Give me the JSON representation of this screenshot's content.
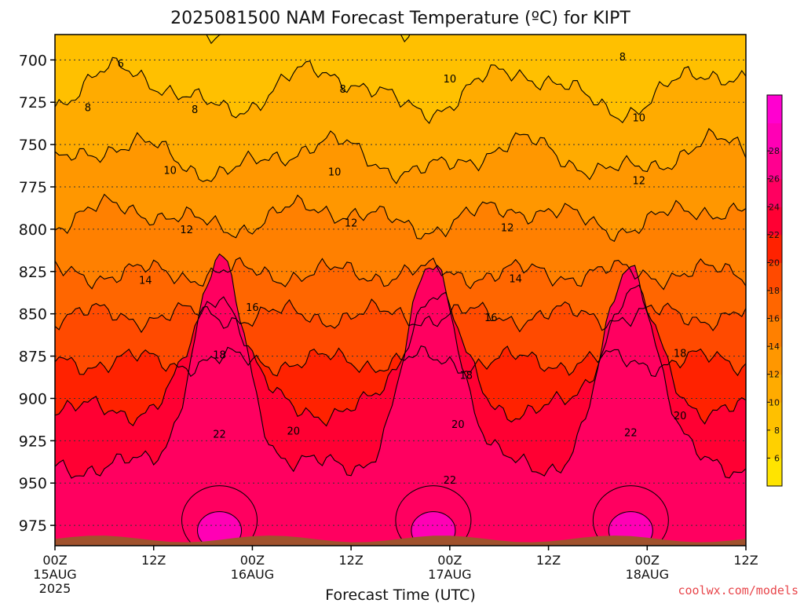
{
  "chart_data": {
    "type": "heatmap",
    "title": "2025081500 NAM Forecast Temperature (ºC) for KIPT",
    "xlabel": "Forecast Time (UTC)",
    "x_ticks": [
      {
        "hour": 0,
        "label": "00Z",
        "date": "15AUG",
        "year": "2025"
      },
      {
        "hour": 12,
        "label": "12Z",
        "date": "",
        "year": ""
      },
      {
        "hour": 24,
        "label": "00Z",
        "date": "16AUG",
        "year": ""
      },
      {
        "hour": 36,
        "label": "12Z",
        "date": "",
        "year": ""
      },
      {
        "hour": 48,
        "label": "00Z",
        "date": "17AUG",
        "year": ""
      },
      {
        "hour": 60,
        "label": "12Z",
        "date": "",
        "year": ""
      },
      {
        "hour": 72,
        "label": "00Z",
        "date": "18AUG",
        "year": ""
      },
      {
        "hour": 84,
        "label": "12Z",
        "date": "",
        "year": ""
      }
    ],
    "xlim": [
      0,
      84
    ],
    "ylim": [
      987,
      685
    ],
    "y_ticks": [
      700,
      725,
      750,
      775,
      800,
      825,
      850,
      875,
      900,
      925,
      950,
      975
    ],
    "contour_levels": [
      6,
      8,
      10,
      12,
      14,
      16,
      18,
      20,
      22
    ],
    "contour_labels": [
      {
        "text": "6",
        "t": 8,
        "p": 702
      },
      {
        "text": "8",
        "t": 4,
        "p": 728
      },
      {
        "text": "8",
        "t": 17,
        "p": 729
      },
      {
        "text": "8",
        "t": 35,
        "p": 717
      },
      {
        "text": "8",
        "t": 69,
        "p": 698
      },
      {
        "text": "10",
        "t": 14,
        "p": 765
      },
      {
        "text": "10",
        "t": 34,
        "p": 766
      },
      {
        "text": "10",
        "t": 48,
        "p": 711
      },
      {
        "text": "10",
        "t": 71,
        "p": 734
      },
      {
        "text": "12",
        "t": 16,
        "p": 800
      },
      {
        "text": "12",
        "t": 36,
        "p": 796
      },
      {
        "text": "12",
        "t": 55,
        "p": 799
      },
      {
        "text": "12",
        "t": 71,
        "p": 771
      },
      {
        "text": "14",
        "t": 11,
        "p": 830
      },
      {
        "text": "14",
        "t": 56,
        "p": 829
      },
      {
        "text": "16",
        "t": 24,
        "p": 846
      },
      {
        "text": "16",
        "t": 53,
        "p": 852
      },
      {
        "text": "18",
        "t": 20,
        "p": 874
      },
      {
        "text": "18",
        "t": 50,
        "p": 886
      },
      {
        "text": "18",
        "t": 76,
        "p": 873
      },
      {
        "text": "20",
        "t": 29,
        "p": 919
      },
      {
        "text": "20",
        "t": 49,
        "p": 915
      },
      {
        "text": "20",
        "t": 76,
        "p": 910
      },
      {
        "text": "22",
        "t": 20,
        "p": 921
      },
      {
        "text": "22",
        "t": 48,
        "p": 948
      },
      {
        "text": "22",
        "t": 70,
        "p": 920
      }
    ],
    "colorbar": {
      "labels": [
        6,
        8,
        10,
        12,
        14,
        16,
        18,
        20,
        22,
        24,
        26,
        28
      ],
      "colors": [
        "#ffe400",
        "#ffd000",
        "#ffc000",
        "#ffab00",
        "#ff9700",
        "#ff8000",
        "#ff6600",
        "#ff4a00",
        "#ff2200",
        "#ff0033",
        "#ff0060",
        "#ff0090",
        "#ff00b5",
        "#ff00d0"
      ]
    },
    "grid": true,
    "ground_color": "#a0522d"
  },
  "credit": "coolwx.com/models"
}
